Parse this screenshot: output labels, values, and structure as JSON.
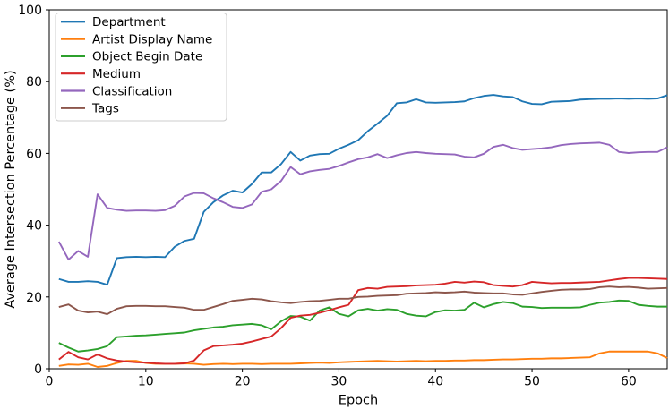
{
  "chart_data": {
    "type": "line",
    "xlabel": "Epoch",
    "ylabel": "Average Intersection Percentage (%)",
    "xlim": [
      0,
      64
    ],
    "ylim": [
      0,
      100
    ],
    "x_ticks": [
      0,
      10,
      20,
      30,
      40,
      50,
      60
    ],
    "y_ticks": [
      0,
      20,
      40,
      60,
      80,
      100
    ],
    "grid": false,
    "legend_position": "upper left",
    "x": [
      1,
      2,
      3,
      4,
      5,
      6,
      7,
      8,
      9,
      10,
      11,
      12,
      13,
      14,
      15,
      16,
      17,
      18,
      19,
      20,
      21,
      22,
      23,
      24,
      25,
      26,
      27,
      28,
      29,
      30,
      31,
      32,
      33,
      34,
      35,
      36,
      37,
      38,
      39,
      40,
      41,
      42,
      43,
      44,
      45,
      46,
      47,
      48,
      49,
      50,
      51,
      52,
      53,
      54,
      55,
      56,
      57,
      58,
      59,
      60,
      61,
      62,
      63,
      64
    ],
    "series": [
      {
        "name": "Department",
        "color": "#1f77b4",
        "values": [
          25.0,
          24.2,
          24.2,
          24.4,
          24.2,
          23.4,
          30.8,
          31.1,
          31.2,
          31.1,
          31.2,
          31.1,
          34.0,
          35.6,
          36.2,
          43.7,
          46.4,
          48.3,
          49.6,
          49.1,
          51.5,
          54.7,
          54.7,
          57.0,
          60.4,
          58.0,
          59.4,
          59.8,
          59.9,
          61.3,
          62.4,
          63.7,
          66.2,
          68.3,
          70.5,
          74.0,
          74.2,
          75.1,
          74.2,
          74.1,
          74.2,
          74.3,
          74.5,
          75.4,
          76.0,
          76.3,
          75.9,
          75.7,
          74.5,
          73.8,
          73.7,
          74.4,
          74.5,
          74.6,
          75.0,
          75.1,
          75.2,
          75.2,
          75.3,
          75.2,
          75.3,
          75.2,
          75.3,
          76.2
        ]
      },
      {
        "name": "Artist Display Name",
        "color": "#ff7f0e",
        "values": [
          0.8,
          1.2,
          1.1,
          1.4,
          0.5,
          0.8,
          1.6,
          2.2,
          2.2,
          1.6,
          1.4,
          1.4,
          1.4,
          1.5,
          1.4,
          1.1,
          1.3,
          1.4,
          1.3,
          1.4,
          1.4,
          1.3,
          1.4,
          1.4,
          1.4,
          1.5,
          1.6,
          1.7,
          1.6,
          1.8,
          1.9,
          2.0,
          2.1,
          2.2,
          2.1,
          2.0,
          2.1,
          2.2,
          2.1,
          2.2,
          2.2,
          2.3,
          2.3,
          2.4,
          2.4,
          2.5,
          2.6,
          2.6,
          2.7,
          2.8,
          2.8,
          2.9,
          2.9,
          3.0,
          3.1,
          3.2,
          4.3,
          4.8,
          4.8,
          4.8,
          4.8,
          4.8,
          4.3,
          3.0
        ]
      },
      {
        "name": "Object Begin Date",
        "color": "#2ca02c",
        "values": [
          7.2,
          5.9,
          4.8,
          5.1,
          5.5,
          6.3,
          8.8,
          9.0,
          9.2,
          9.3,
          9.5,
          9.7,
          9.9,
          10.1,
          10.7,
          11.1,
          11.5,
          11.7,
          12.1,
          12.3,
          12.5,
          12.1,
          11.0,
          13.2,
          14.7,
          14.5,
          13.4,
          16.2,
          17.1,
          15.3,
          14.6,
          16.3,
          16.7,
          16.2,
          16.6,
          16.4,
          15.3,
          14.8,
          14.6,
          15.8,
          16.3,
          16.2,
          16.4,
          18.4,
          17.1,
          18.0,
          18.6,
          18.3,
          17.3,
          17.2,
          16.9,
          17.0,
          17.0,
          17.0,
          17.1,
          17.8,
          18.4,
          18.6,
          19.0,
          18.9,
          17.8,
          17.5,
          17.3,
          17.3
        ]
      },
      {
        "name": "Medium",
        "color": "#d62728",
        "values": [
          2.6,
          4.7,
          3.2,
          2.6,
          4.0,
          2.9,
          2.3,
          2.0,
          1.8,
          1.7,
          1.5,
          1.4,
          1.4,
          1.5,
          2.3,
          5.1,
          6.3,
          6.5,
          6.7,
          7.0,
          7.6,
          8.3,
          9.0,
          11.3,
          14.2,
          14.8,
          15.0,
          15.6,
          16.3,
          17.1,
          17.8,
          21.9,
          22.5,
          22.3,
          22.8,
          22.9,
          23.0,
          23.2,
          23.3,
          23.4,
          23.7,
          24.2,
          24.0,
          24.3,
          24.1,
          23.3,
          23.1,
          22.9,
          23.3,
          24.2,
          24.0,
          23.8,
          23.9,
          23.9,
          24.0,
          24.1,
          24.2,
          24.6,
          25.0,
          25.3,
          25.3,
          25.2,
          25.1,
          25.0
        ]
      },
      {
        "name": "Classification",
        "color": "#9467bd",
        "values": [
          35.4,
          30.4,
          32.8,
          31.2,
          48.6,
          44.8,
          44.3,
          44.0,
          44.1,
          44.1,
          44.0,
          44.2,
          45.4,
          48.0,
          49.0,
          48.9,
          47.5,
          46.4,
          45.1,
          44.8,
          45.8,
          49.3,
          50.0,
          52.3,
          56.2,
          54.2,
          55.0,
          55.4,
          55.7,
          56.5,
          57.5,
          58.4,
          58.9,
          59.8,
          58.7,
          59.5,
          60.1,
          60.4,
          60.1,
          59.9,
          59.8,
          59.7,
          59.1,
          58.9,
          59.9,
          61.8,
          62.4,
          61.5,
          61.0,
          61.2,
          61.4,
          61.7,
          62.3,
          62.6,
          62.8,
          62.9,
          63.0,
          62.4,
          60.4,
          60.1,
          60.3,
          60.4,
          60.4,
          61.7
        ]
      },
      {
        "name": "Tags",
        "color": "#8c564b",
        "values": [
          17.2,
          17.9,
          16.2,
          15.7,
          15.9,
          15.2,
          16.7,
          17.4,
          17.5,
          17.5,
          17.4,
          17.4,
          17.2,
          17.0,
          16.4,
          16.4,
          17.2,
          18.0,
          18.9,
          19.2,
          19.5,
          19.3,
          18.8,
          18.5,
          18.3,
          18.6,
          18.8,
          18.9,
          19.2,
          19.5,
          19.5,
          20.0,
          20.1,
          20.3,
          20.4,
          20.5,
          20.9,
          21.0,
          21.1,
          21.3,
          21.2,
          21.3,
          21.5,
          21.2,
          21.1,
          21.0,
          21.0,
          20.7,
          20.6,
          21.0,
          21.4,
          21.7,
          22.0,
          22.1,
          22.1,
          22.2,
          22.7,
          22.9,
          22.7,
          22.8,
          22.6,
          22.3,
          22.4,
          22.5
        ]
      }
    ]
  }
}
